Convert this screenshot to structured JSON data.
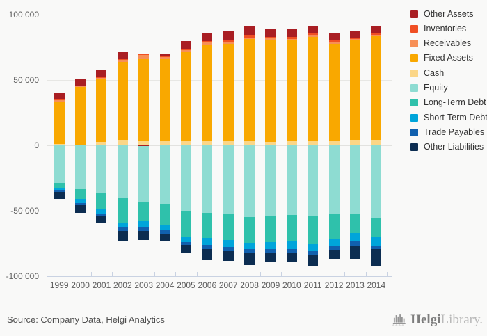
{
  "colors": {
    "background": "#f9f9f8",
    "gridline": "#e7e7e4",
    "axis": "#c9d2e2",
    "tick_label": "#616161",
    "legend_label": "#333333",
    "source_text": "#4e4e4e"
  },
  "footer": {
    "source": "Source: Company Data, Helgi Analytics",
    "logo_bold": "Helgi",
    "logo_light": "Library."
  },
  "chart_data": {
    "type": "bar",
    "stacked": true,
    "title": "",
    "xlabel": "",
    "ylabel": "",
    "grid": true,
    "legend_position": "right",
    "ylim": [
      -100000,
      100000
    ],
    "yticks": [
      {
        "value": 100000,
        "label": "100 000"
      },
      {
        "value": 50000,
        "label": "50 000"
      },
      {
        "value": 0,
        "label": "0"
      },
      {
        "value": -50000,
        "label": "-50 000"
      },
      {
        "value": -100000,
        "label": "-100 000"
      }
    ],
    "categories": [
      "1999",
      "2000",
      "2001",
      "2002",
      "2003",
      "2004",
      "2005",
      "2006",
      "2007",
      "2008",
      "2009",
      "2010",
      "2011",
      "2012",
      "2013",
      "2014"
    ],
    "series": [
      {
        "name": "Other Assets",
        "color": "#a91e23",
        "values": [
          4800,
          5400,
          5000,
          5000,
          -700,
          2300,
          5600,
          6300,
          6800,
          7500,
          5900,
          5900,
          6100,
          6300,
          5300,
          5000
        ]
      },
      {
        "name": "Inventories",
        "color": "#f04f23",
        "values": [
          600,
          500,
          600,
          700,
          500,
          800,
          1250,
          1400,
          1300,
          1400,
          1200,
          1200,
          1200,
          1200,
          900,
          1300
        ]
      },
      {
        "name": "Receivables",
        "color": "#f78f56",
        "values": [
          700,
          600,
          700,
          1400,
          3000,
          1200,
          1400,
          1400,
          1400,
          1250,
          1100,
          1100,
          1100,
          1100,
          900,
          1400
        ]
      },
      {
        "name": "Fixed Assets",
        "color": "#f9a800",
        "values": [
          32800,
          44300,
          48100,
          59700,
          62700,
          63100,
          68500,
          73800,
          74200,
          77600,
          78100,
          76900,
          79200,
          74200,
          76300,
          78900
        ]
      },
      {
        "name": "Cash",
        "color": "#fbd687",
        "values": [
          900,
          500,
          2900,
          4300,
          3500,
          3000,
          3000,
          3400,
          3600,
          3800,
          2700,
          3600,
          3900,
          3600,
          4300,
          4400
        ]
      },
      {
        "name": "Equity",
        "color": "#8edcd2",
        "values": [
          -28800,
          -32900,
          -36400,
          -40500,
          -42500,
          -44600,
          -50200,
          -51400,
          -52500,
          -54700,
          -53800,
          -53000,
          -54500,
          -51900,
          -52400,
          -55300
        ]
      },
      {
        "name": "Long-Term Debt",
        "color": "#2fc1ab",
        "values": [
          -3400,
          -8200,
          -12200,
          -18300,
          -14700,
          -16800,
          -19400,
          -19200,
          -19700,
          -19900,
          -19900,
          -19700,
          -20900,
          -19600,
          -14700,
          -14600
        ]
      },
      {
        "name": "Short-Term Debt",
        "color": "#00a5da",
        "values": [
          -2100,
          -3000,
          -3600,
          -3900,
          -4700,
          -3600,
          -4100,
          -5600,
          -5400,
          -4800,
          -5700,
          -6600,
          -5500,
          -5400,
          -6200,
          -6500
        ]
      },
      {
        "name": "Trade Payables",
        "color": "#1160ae",
        "values": [
          -1600,
          -1600,
          -2100,
          -2900,
          -2900,
          -2500,
          -2150,
          -3200,
          -3000,
          -2900,
          -2700,
          -3000,
          -2500,
          -3000,
          -3200,
          -2800
        ]
      },
      {
        "name": "Other Liabilities",
        "color": "#0c2d51",
        "values": [
          -4900,
          -6100,
          -4500,
          -7500,
          -6800,
          -5600,
          -5900,
          -8200,
          -7700,
          -9300,
          -7200,
          -7200,
          -8400,
          -7100,
          -11000,
          -12700
        ]
      }
    ]
  }
}
